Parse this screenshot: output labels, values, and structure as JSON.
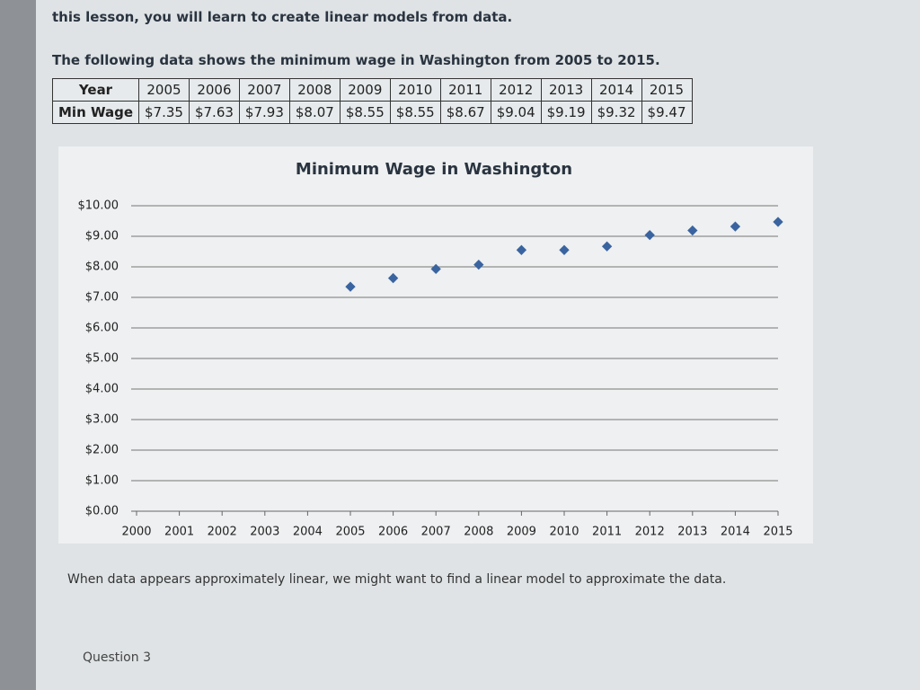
{
  "intro": "this lesson, you will learn to create linear models from data.",
  "lead": "The following data shows the minimum wage in Washington from 2005 to 2015.",
  "table": {
    "rows": [
      [
        "Year",
        "2005",
        "2006",
        "2007",
        "2008",
        "2009",
        "2010",
        "2011",
        "2012",
        "2013",
        "2014",
        "2015"
      ],
      [
        "Min Wage",
        "$7.35",
        "$7.63",
        "$7.93",
        "$8.07",
        "$8.55",
        "$8.55",
        "$8.67",
        "$9.04",
        "$9.19",
        "$9.32",
        "$9.47"
      ]
    ]
  },
  "chart_data": {
    "type": "scatter",
    "title": "Minimum Wage in Washington",
    "x": [
      2005,
      2006,
      2007,
      2008,
      2009,
      2010,
      2011,
      2012,
      2013,
      2014,
      2015
    ],
    "values": [
      7.35,
      7.63,
      7.93,
      8.07,
      8.55,
      8.55,
      8.67,
      9.04,
      9.19,
      9.32,
      9.47
    ],
    "color": "#3a64a0",
    "xlim": [
      2000,
      2015
    ],
    "xticks": [
      2000,
      2001,
      2002,
      2003,
      2004,
      2005,
      2006,
      2007,
      2008,
      2009,
      2010,
      2011,
      2012,
      2013,
      2014,
      2015
    ],
    "ylim": [
      0,
      10
    ],
    "yticks": [
      {
        "value": 0,
        "label": "$0.00"
      },
      {
        "value": 1,
        "label": "$1.00"
      },
      {
        "value": 2,
        "label": "$2.00"
      },
      {
        "value": 3,
        "label": "$3.00"
      },
      {
        "value": 4,
        "label": "$4.00"
      },
      {
        "value": 5,
        "label": "$5.00"
      },
      {
        "value": 6,
        "label": "$6.00"
      },
      {
        "value": 7,
        "label": "$7.00"
      },
      {
        "value": 8,
        "label": "$8.00"
      },
      {
        "value": 9,
        "label": "$9.00"
      },
      {
        "value": 10,
        "label": "$10.00"
      }
    ],
    "grid": true
  },
  "note": "When data appears approximately linear, we might want to find a linear model to approximate the data.",
  "question": "Question 3"
}
